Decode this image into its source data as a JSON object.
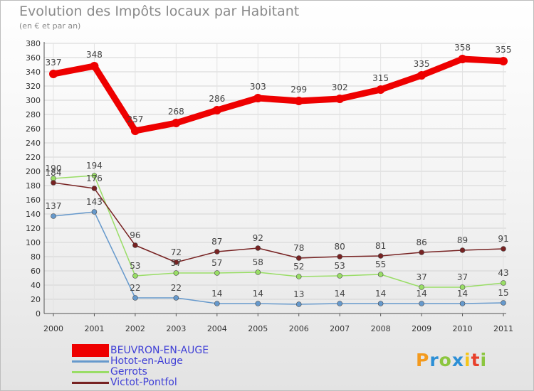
{
  "header": {
    "title": "Evolution des Impôts locaux par Habitant",
    "subtitle": "(en € et par an)"
  },
  "logo": {
    "letters": [
      "P",
      "r",
      "o",
      "x",
      "i",
      "t",
      "i"
    ],
    "colors": [
      "#f39a1e",
      "#2c8fd6",
      "#8cc63f",
      "#2c8fd6",
      "#f5c518",
      "#e8412c",
      "#8cc63f"
    ]
  },
  "chart_data": {
    "type": "line",
    "title": "Evolution des Impôts locaux par Habitant",
    "subtitle": "(en € et par an)",
    "xlabel": "",
    "ylabel": "",
    "x": [
      "2000",
      "2001",
      "2002",
      "2003",
      "2004",
      "2005",
      "2006",
      "2007",
      "2008",
      "2009",
      "2010",
      "2011"
    ],
    "ylim": [
      0,
      380
    ],
    "yticks": [
      0,
      20,
      40,
      60,
      80,
      100,
      120,
      140,
      160,
      180,
      200,
      220,
      240,
      260,
      280,
      300,
      320,
      340,
      360,
      380
    ],
    "grid": true,
    "legend_position": "bottom-left",
    "series": [
      {
        "name": "BEUVRON-EN-AUGE",
        "color": "#ee0000",
        "values": [
          337,
          348,
          257,
          268,
          286,
          303,
          299,
          302,
          315,
          335,
          358,
          355
        ]
      },
      {
        "name": "Hotot-en-Auge",
        "color": "#6699cc",
        "values": [
          137,
          143,
          22,
          22,
          14,
          14,
          13,
          14,
          14,
          14,
          14,
          15
        ]
      },
      {
        "name": "Gerrots",
        "color": "#99dd66",
        "values": [
          190,
          194,
          53,
          57,
          57,
          58,
          52,
          53,
          55,
          37,
          37,
          43
        ]
      },
      {
        "name": "Victot-Pontfol",
        "color": "#772222",
        "values": [
          184,
          176,
          96,
          72,
          87,
          92,
          78,
          80,
          81,
          86,
          89,
          91
        ]
      }
    ]
  }
}
